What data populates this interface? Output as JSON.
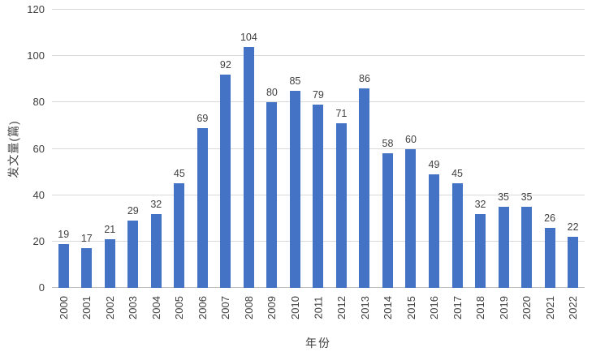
{
  "chart_data": {
    "type": "bar",
    "title": "",
    "xlabel": "年份",
    "ylabel": "发文量(篇)",
    "categories": [
      "2000",
      "2001",
      "2002",
      "2003",
      "2004",
      "2005",
      "2006",
      "2007",
      "2008",
      "2009",
      "2010",
      "2011",
      "2012",
      "2013",
      "2014",
      "2015",
      "2016",
      "2017",
      "2018",
      "2019",
      "2020",
      "2021",
      "2022"
    ],
    "values": [
      19,
      17,
      21,
      29,
      32,
      45,
      69,
      92,
      104,
      80,
      85,
      79,
      71,
      86,
      58,
      60,
      49,
      45,
      32,
      35,
      35,
      26,
      22
    ],
    "ylim": [
      0,
      120
    ],
    "yticks": [
      0,
      20,
      40,
      60,
      80,
      100,
      120
    ],
    "grid": true,
    "legend": "none",
    "data_labels": true,
    "colors": {
      "bar": "#4472c4",
      "gridline": "#d9d9d9",
      "axis_line": "#bfbfbf",
      "text": "#404040"
    }
  }
}
